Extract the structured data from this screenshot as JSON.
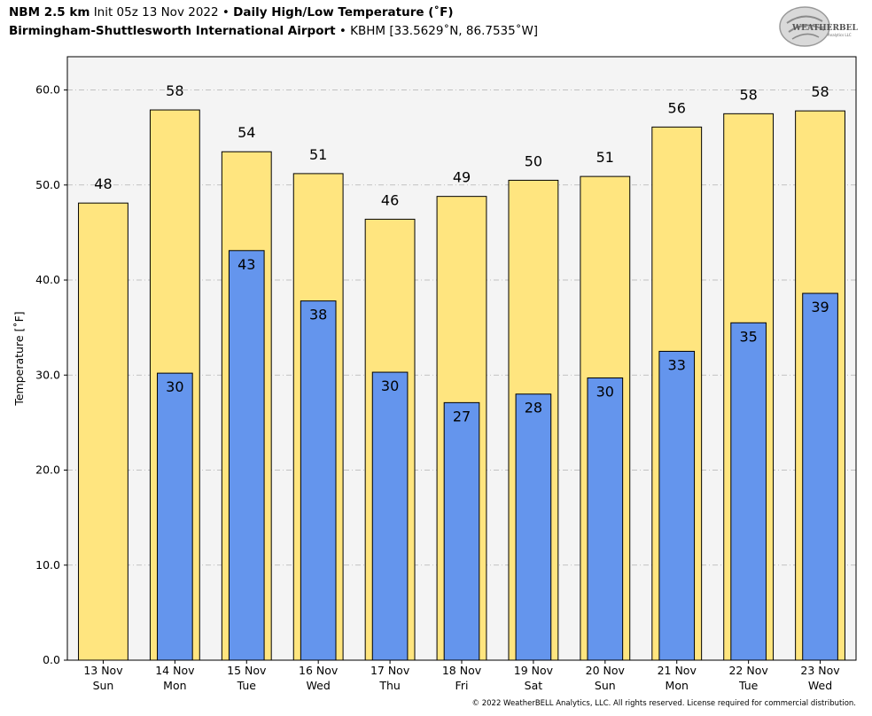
{
  "header": {
    "model": "NBM 2.5 km",
    "init": "Init 05z 13 Nov 2022",
    "separator": "•",
    "product": "Daily High/Low Temperature (˚F)",
    "station": "Birmingham-Shuttlesworth International Airport",
    "station_info": "KBHM [33.5629˚N, 86.7535˚W]"
  },
  "logo": {
    "icon": "weatherbell-logo-icon",
    "text": "WEATHERBELL",
    "subtext": "Analytics LLC"
  },
  "copyright": "© 2022 WeatherBELL Analytics, LLC. All rights reserved. License required for commercial distribution.",
  "colors": {
    "high": "#ffe57f",
    "low": "#6495ed",
    "plot_bg": "#f4f4f4",
    "grid": "#b0b0b0"
  },
  "chart_data": {
    "type": "bar",
    "ylabel": "Temperature [˚F]",
    "ylim": [
      0,
      63.5
    ],
    "yticks": [
      0,
      10,
      20,
      30,
      40,
      50,
      60
    ],
    "ytick_labels": [
      "0.0",
      "10.0",
      "20.0",
      "30.0",
      "40.0",
      "50.0",
      "60.0"
    ],
    "grid": true,
    "categories": [
      {
        "date": "13 Nov",
        "day": "Sun"
      },
      {
        "date": "14 Nov",
        "day": "Mon"
      },
      {
        "date": "15 Nov",
        "day": "Tue"
      },
      {
        "date": "16 Nov",
        "day": "Wed"
      },
      {
        "date": "17 Nov",
        "day": "Thu"
      },
      {
        "date": "18 Nov",
        "day": "Fri"
      },
      {
        "date": "19 Nov",
        "day": "Sat"
      },
      {
        "date": "20 Nov",
        "day": "Sun"
      },
      {
        "date": "21 Nov",
        "day": "Mon"
      },
      {
        "date": "22 Nov",
        "day": "Tue"
      },
      {
        "date": "23 Nov",
        "day": "Wed"
      }
    ],
    "series": [
      {
        "key": "high",
        "values": [
          48.1,
          57.9,
          53.5,
          51.2,
          46.4,
          48.8,
          50.5,
          50.9,
          56.1,
          57.5,
          57.8
        ],
        "labels": [
          "48",
          "58",
          "54",
          "51",
          "46",
          "49",
          "50",
          "51",
          "56",
          "58",
          "58"
        ]
      },
      {
        "key": "low",
        "values": [
          null,
          30.2,
          43.1,
          37.8,
          30.3,
          27.1,
          28.0,
          29.7,
          32.5,
          35.5,
          38.6
        ],
        "labels": [
          "",
          "30",
          "43",
          "38",
          "30",
          "27",
          "28",
          "30",
          "33",
          "35",
          "39"
        ]
      }
    ]
  }
}
